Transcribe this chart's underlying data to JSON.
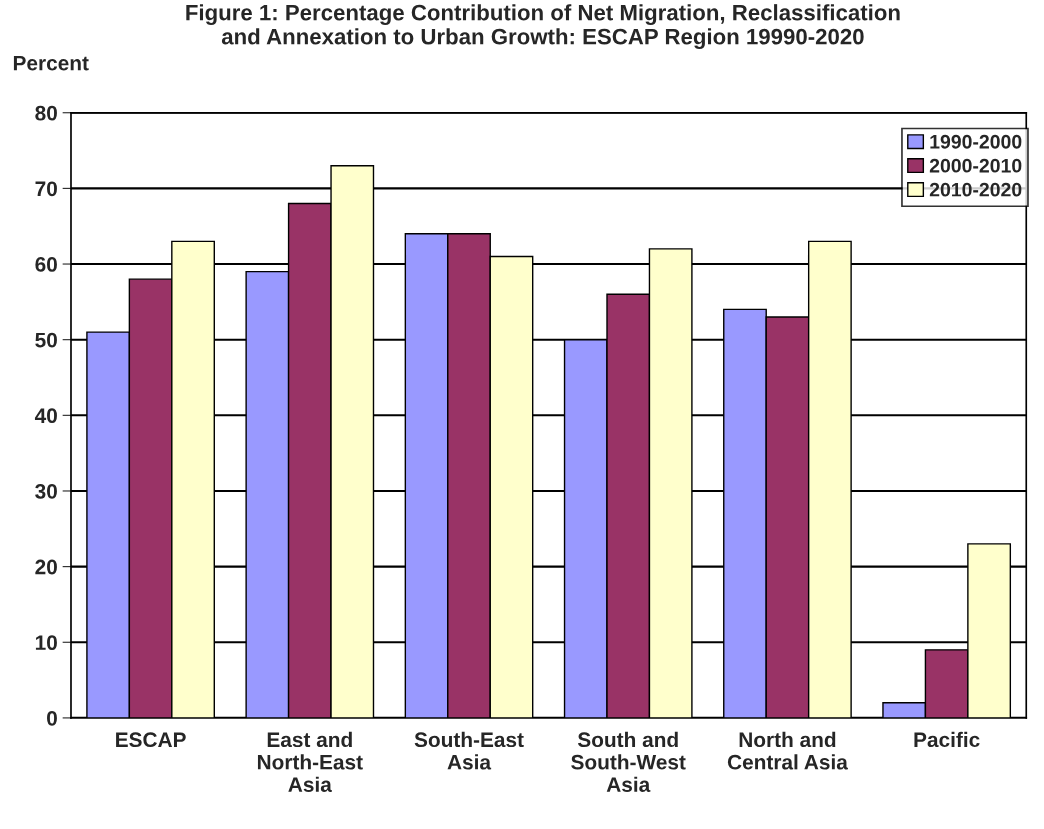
{
  "chart_data": {
    "type": "bar",
    "title": "Figure 1: Percentage Contribution of Net Migration, Reclassification\nand Annexation to Urban Growth: ESCAP Region 19990-2020",
    "ylabel": "Percent",
    "categories": [
      "ESCAP",
      "East and\nNorth-East\nAsia",
      "South-East\nAsia",
      "South and\nSouth-West\nAsia",
      "North and\nCentral Asia",
      "Pacific"
    ],
    "series": [
      {
        "name": "1990-2000",
        "color": "#9999ff",
        "values": [
          51,
          59,
          64,
          50,
          54,
          2
        ]
      },
      {
        "name": "2000-2010",
        "color": "#993366",
        "values": [
          58,
          68,
          64,
          56,
          53,
          9
        ]
      },
      {
        "name": "2010-2020",
        "color": "#ffffcc",
        "values": [
          63,
          73,
          61,
          62,
          63,
          23
        ]
      }
    ],
    "ylim": [
      0,
      80
    ],
    "yticks": [
      0,
      10,
      20,
      30,
      40,
      50,
      60,
      70,
      80
    ],
    "grid": "y",
    "legend": "top right"
  }
}
